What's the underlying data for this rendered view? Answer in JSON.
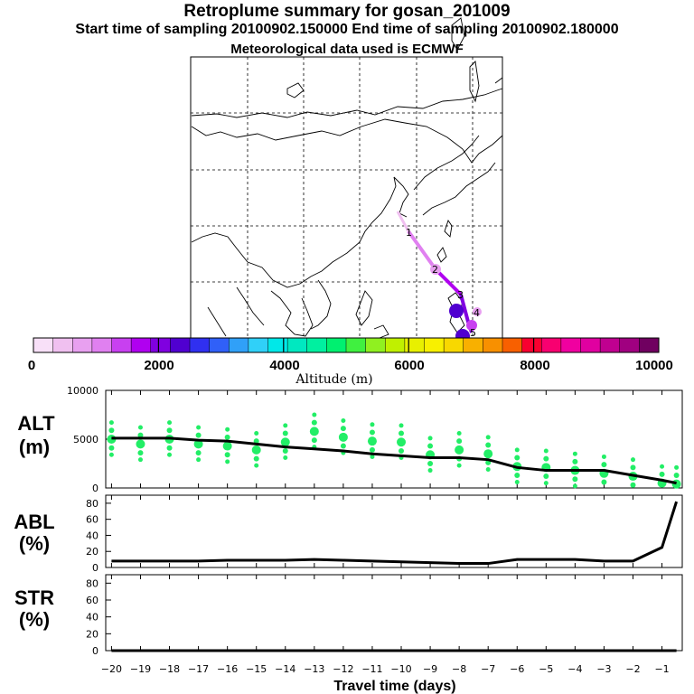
{
  "header": {
    "title": "Retroplume summary for gosan_201009",
    "sampling": "Start time of sampling 20100902.150000     End time of sampling 20100902.180000",
    "met": "Meteorological data used is ECMWF"
  },
  "colorbar": {
    "label": "Altitude (m)",
    "ticks": [
      "0",
      "2000",
      "4000",
      "6000",
      "8000",
      "10000"
    ],
    "colors": [
      "#f8e0f8",
      "#f0c0f0",
      "#e8a0f0",
      "#e080f0",
      "#c840f0",
      "#b000f0",
      "#8000e0",
      "#5000d0",
      "#3030f0",
      "#3060f8",
      "#30a0f8",
      "#30d0f8",
      "#00e8e8",
      "#00e8c0",
      "#00f0a0",
      "#00f070",
      "#40f040",
      "#90f020",
      "#c0f000",
      "#e8f000",
      "#f8f000",
      "#f8d800",
      "#f8b000",
      "#f89000",
      "#f86000",
      "#f80030",
      "#f80070",
      "#f000a0",
      "#e000a0",
      "#c00090",
      "#a00080",
      "#700060"
    ]
  },
  "map": {
    "trajectory_labels": [
      "1",
      "2",
      "3",
      "4",
      "5"
    ],
    "colors": {
      "coast": "#000000",
      "grid": "#000000"
    }
  },
  "chart_data": [
    {
      "type": "scatter+line",
      "panel": "ALT",
      "ylabel_lines": [
        "ALT",
        "(m)"
      ],
      "ylim": [
        0,
        10000
      ],
      "ytick_labels": [
        "0",
        "5000",
        "10000"
      ],
      "color_points": "#22ee66",
      "median_line": {
        "x": [
          -20,
          -19,
          -18,
          -17,
          -16,
          -15,
          -14,
          -13,
          -12,
          -11,
          -10,
          -9,
          -8,
          -7,
          -6,
          -5,
          -4,
          -3,
          -2,
          -1,
          -0.5
        ],
        "y": [
          5100,
          5100,
          5100,
          4900,
          4800,
          4500,
          4200,
          4000,
          3800,
          3500,
          3300,
          3100,
          3100,
          2900,
          2100,
          1800,
          1800,
          1800,
          1300,
          800,
          500
        ]
      },
      "clusters": {
        "x": [
          -20,
          -19,
          -18,
          -17,
          -16,
          -15,
          -14,
          -13,
          -12,
          -11,
          -10,
          -9,
          -8,
          -7,
          -6,
          -5,
          -4,
          -3,
          -2,
          -1,
          -0.5
        ],
        "y": [
          5000,
          4500,
          5000,
          4500,
          4300,
          3900,
          4700,
          5800,
          5200,
          4800,
          4700,
          3400,
          3900,
          3500,
          2200,
          2100,
          1800,
          1500,
          1200,
          500,
          400
        ]
      }
    },
    {
      "type": "line",
      "panel": "ABL",
      "ylabel_lines": [
        "ABL",
        "(%)"
      ],
      "ylim": [
        0,
        90
      ],
      "ytick_labels": [
        "0",
        "20",
        "40",
        "60",
        "80"
      ],
      "x": [
        -20,
        -19,
        -18,
        -17,
        -16,
        -15,
        -14,
        -13,
        -12,
        -11,
        -10,
        -9,
        -8,
        -7,
        -6,
        -5,
        -4,
        -3,
        -2,
        -1,
        -0.5
      ],
      "y": [
        8,
        8,
        8,
        8,
        9,
        9,
        9,
        10,
        9,
        8,
        7,
        6,
        5,
        5,
        10,
        10,
        10,
        8,
        8,
        25,
        82
      ]
    },
    {
      "type": "line",
      "panel": "STR",
      "ylabel_lines": [
        "STR",
        "(%)"
      ],
      "ylim": [
        0,
        90
      ],
      "ytick_labels": [
        "0",
        "20",
        "40",
        "60",
        "80"
      ],
      "x": [
        -20,
        -0.5
      ],
      "y": [
        0,
        0
      ]
    }
  ],
  "xaxis": {
    "label": "Travel time (days)",
    "xlim": [
      -20.2,
      -0.3
    ],
    "tick_values": [
      -20,
      -19,
      -18,
      -17,
      -16,
      -15,
      -14,
      -13,
      -12,
      -11,
      -10,
      -9,
      -8,
      -7,
      -6,
      -5,
      -4,
      -3,
      -2,
      -1
    ],
    "tick_labels": [
      "−20",
      "−19",
      "−18",
      "−17",
      "−16",
      "−15",
      "−14",
      "−13",
      "−12",
      "−11",
      "−10",
      "−9",
      "−8",
      "−7",
      "−6",
      "−5",
      "−4",
      "−3",
      "−2",
      "−1"
    ]
  }
}
